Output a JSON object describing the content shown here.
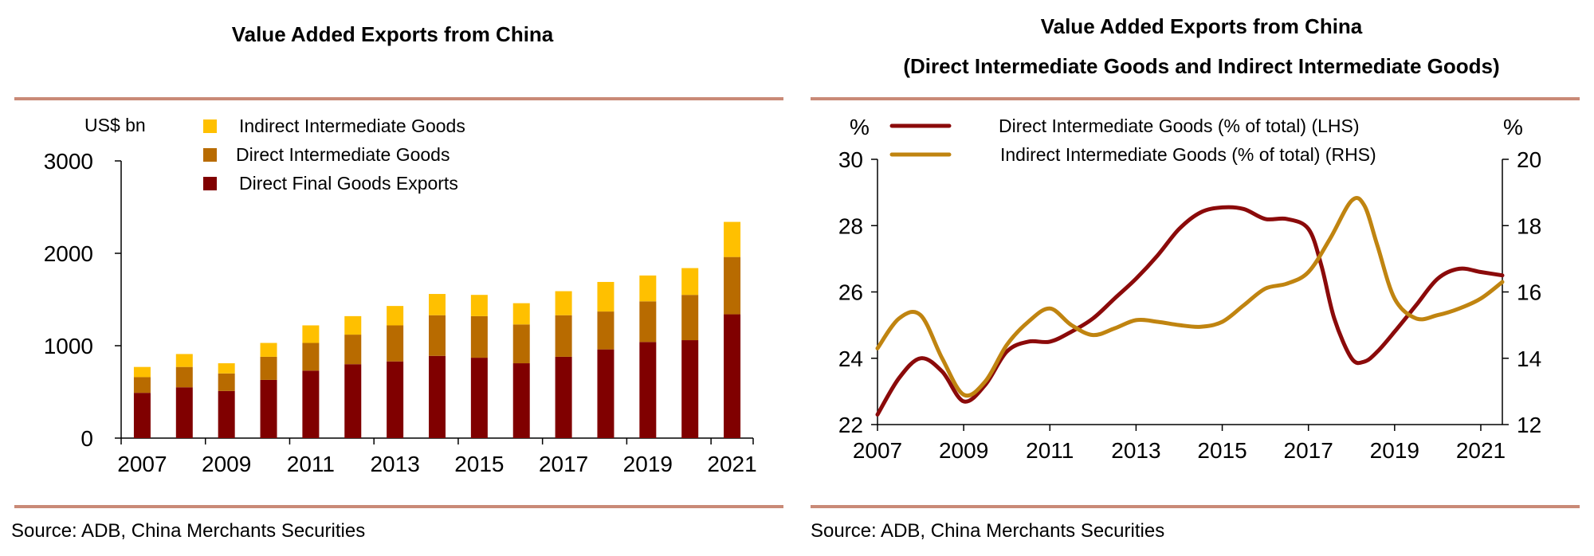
{
  "colors": {
    "rule": "#c98a77",
    "direct_final": "#800000",
    "direct_intermediate": "#b86b00",
    "indirect_intermediate": "#ffc000",
    "line_direct": "#8b0a0a",
    "line_indirect": "#c08410"
  },
  "left": {
    "title": "Value Added Exports from China",
    "source": "Source: ADB, China Merchants Securities"
  },
  "right": {
    "title_line1": "Value Added Exports from China",
    "title_line2": "(Direct Intermediate Goods and Indirect Intermediate Goods)",
    "source": "Source: ADB, China Merchants Securities"
  },
  "chart_data": [
    {
      "type": "bar",
      "stacked": true,
      "title": "Value Added Exports from China",
      "ylabel": "US$ bn",
      "ylim": [
        0,
        3000
      ],
      "yticks": [
        0,
        1000,
        2000,
        3000
      ],
      "categories": [
        "2007",
        "2008",
        "2009",
        "2010",
        "2011",
        "2012",
        "2013",
        "2014",
        "2015",
        "2016",
        "2017",
        "2018",
        "2019",
        "2020",
        "2021"
      ],
      "xtick_labels": [
        "2007",
        "2009",
        "2011",
        "2013",
        "2015",
        "2017",
        "2019",
        "2021"
      ],
      "legend": "top-left",
      "grid": false,
      "series": [
        {
          "name": "Direct Final Goods Exports",
          "color": "#800000",
          "values": [
            490,
            550,
            510,
            630,
            730,
            800,
            830,
            890,
            870,
            810,
            880,
            960,
            1040,
            1060,
            1340
          ]
        },
        {
          "name": "Direct Intermediate Goods",
          "color": "#b86b00",
          "values": [
            170,
            220,
            190,
            250,
            300,
            320,
            390,
            440,
            450,
            420,
            450,
            410,
            440,
            490,
            620
          ]
        },
        {
          "name": "Indirect Intermediate Goods",
          "color": "#ffc000",
          "values": [
            110,
            140,
            110,
            150,
            190,
            200,
            210,
            230,
            230,
            230,
            260,
            320,
            280,
            290,
            380
          ]
        }
      ]
    },
    {
      "type": "line",
      "title": "Value Added Exports from China (Direct Intermediate Goods and Indirect Intermediate Goods)",
      "ylabel_left": "%",
      "ylabel_right": "%",
      "ylim_left": [
        22,
        30
      ],
      "ylim_right": [
        12,
        20
      ],
      "yticks_left": [
        22,
        24,
        26,
        28,
        30
      ],
      "yticks_right": [
        12,
        14,
        16,
        18,
        20
      ],
      "xlim": [
        2007,
        2021.5
      ],
      "xtick_labels": [
        "2007",
        "2009",
        "2011",
        "2013",
        "2015",
        "2017",
        "2019",
        "2021"
      ],
      "legend": "top",
      "grid": false,
      "series": [
        {
          "name": "Direct Intermediate Goods (% of total) (LHS)",
          "axis": "left",
          "color": "#8b0a0a",
          "x": [
            2007,
            2007.5,
            2008,
            2008.5,
            2009,
            2009.5,
            2010,
            2010.5,
            2011,
            2011.5,
            2012,
            2012.5,
            2013,
            2013.5,
            2014,
            2014.5,
            2015,
            2015.5,
            2016,
            2016.5,
            2017,
            2017.3,
            2017.6,
            2018,
            2018.3,
            2018.6,
            2019,
            2019.5,
            2020,
            2020.5,
            2021,
            2021.5
          ],
          "y": [
            22.3,
            23.4,
            24.0,
            23.6,
            22.7,
            23.2,
            24.2,
            24.5,
            24.5,
            24.8,
            25.2,
            25.8,
            26.4,
            27.1,
            27.9,
            28.4,
            28.55,
            28.5,
            28.2,
            28.2,
            27.9,
            26.8,
            25.2,
            24.0,
            23.9,
            24.2,
            24.8,
            25.6,
            26.4,
            26.7,
            26.6,
            26.5
          ]
        },
        {
          "name": "Indirect Intermediate Goods (% of total) (RHS)",
          "axis": "right",
          "color": "#c08410",
          "x": [
            2007,
            2007.5,
            2008,
            2008.5,
            2009,
            2009.5,
            2010,
            2010.5,
            2011,
            2011.5,
            2012,
            2012.5,
            2013,
            2013.5,
            2014,
            2014.5,
            2015,
            2015.5,
            2016,
            2016.5,
            2017,
            2017.5,
            2018,
            2018.3,
            2018.6,
            2019,
            2019.5,
            2020,
            2020.5,
            2021,
            2021.5
          ],
          "y": [
            14.3,
            15.2,
            15.3,
            14.0,
            12.9,
            13.3,
            14.4,
            15.1,
            15.5,
            15.0,
            14.7,
            14.9,
            15.15,
            15.1,
            15.0,
            14.95,
            15.1,
            15.6,
            16.1,
            16.25,
            16.6,
            17.6,
            18.75,
            18.6,
            17.4,
            15.8,
            15.2,
            15.3,
            15.5,
            15.8,
            16.3
          ]
        }
      ]
    }
  ]
}
